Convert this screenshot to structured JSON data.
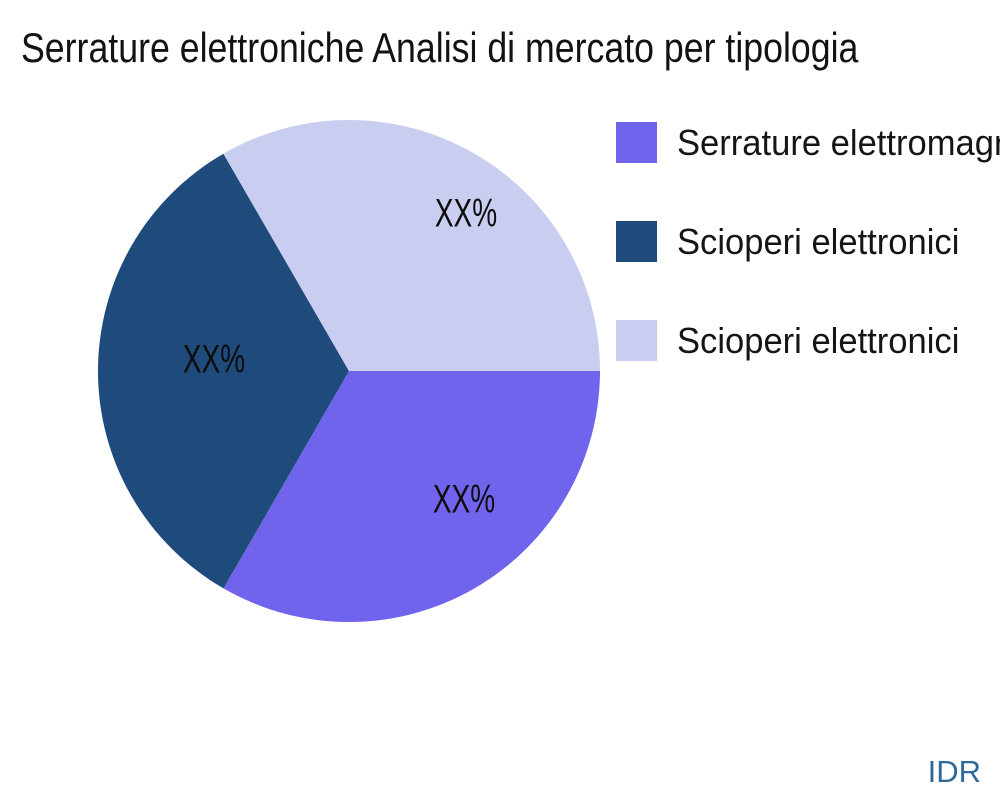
{
  "title": "Serrature elettroniche Analisi di mercato per tipologia",
  "watermark": "IDR",
  "chart_data": {
    "type": "pie",
    "title": "Serrature elettroniche Analisi di mercato per tipologia",
    "legend_position": "right",
    "start_angle_deg": 0,
    "direction": "clockwise",
    "values_hidden": true,
    "slices": [
      {
        "label": "Serrature elettromagnetiche",
        "value": 33.33,
        "display_pct": "XX%",
        "color": "#7164ec"
      },
      {
        "label": "Scioperi elettronici",
        "value": 33.33,
        "display_pct": "XX%",
        "color": "#1f4b7c"
      },
      {
        "label": "Scioperi elettronici",
        "value": 33.34,
        "display_pct": "XX%",
        "color": "#c9cdf0"
      }
    ]
  }
}
